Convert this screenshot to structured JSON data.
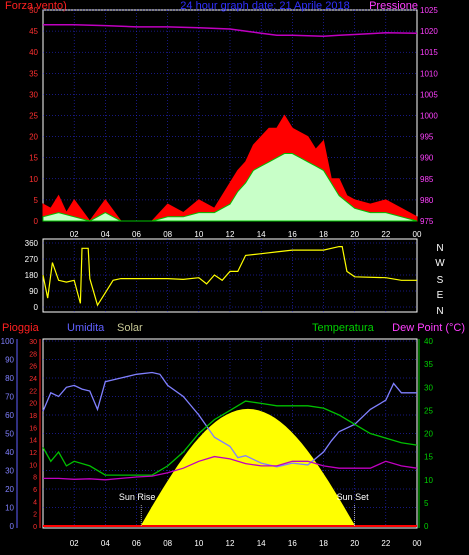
{
  "chart_data": [
    {
      "type": "line",
      "panel": "wind-pressure",
      "title": "24 hour graph date: 21 Aprile 2018",
      "left_axis_label": "Forza vento)",
      "right_axis_label": "Pressione",
      "x_ticks": [
        "02",
        "04",
        "06",
        "08",
        "10",
        "12",
        "14",
        "16",
        "18",
        "20",
        "22",
        "00"
      ],
      "y_left_ticks": [
        "0",
        "5",
        "10",
        "15",
        "20",
        "25",
        "30",
        "35",
        "40",
        "45",
        "50"
      ],
      "y_left_range": [
        0,
        50
      ],
      "y_right_ticks": [
        "975",
        "980",
        "985",
        "990",
        "995",
        "1000",
        "1005",
        "1010",
        "1015",
        "1020",
        "1025"
      ],
      "y_right_range": [
        975,
        1025
      ],
      "colors": {
        "gust": "#ff0000",
        "wind_avg": "#00c000",
        "wind": "#c8ffc8",
        "pressure": "#c000c0",
        "axis": "#3030ff"
      },
      "series": [
        {
          "x": [
            0,
            2,
            4,
            6,
            8,
            10,
            12,
            13,
            14,
            15,
            16,
            17,
            18,
            19,
            20,
            22,
            24
          ],
          "values": [
            1021.5,
            1021.5,
            1021.3,
            1021.0,
            1021.0,
            1020.8,
            1020.5,
            1020.0,
            1019.5,
            1019.0,
            1019.0,
            1018.9,
            1018.8,
            1019.0,
            1019.2,
            1019.6,
            1019.5
          ]
        },
        {
          "x": [
            0,
            0.5,
            1,
            1.5,
            2,
            3,
            4,
            5,
            6,
            7,
            8,
            9,
            10,
            11,
            12,
            12.5,
            13,
            13.5,
            14,
            14.5,
            15,
            15.5,
            16,
            16.5,
            17,
            17.5,
            18,
            18.5,
            19,
            19.5,
            20,
            21,
            22,
            23,
            24
          ],
          "values": [
            4,
            3,
            6,
            2,
            5,
            0,
            5,
            0,
            0,
            0,
            4,
            2,
            5,
            3,
            9,
            12,
            14,
            18,
            20,
            22,
            22,
            25,
            22,
            21,
            20,
            17,
            19,
            10,
            10,
            6,
            5,
            4,
            5,
            3,
            1
          ]
        },
        {
          "x": [
            0,
            1,
            2,
            3,
            4,
            5,
            6,
            7,
            8,
            9,
            10,
            11,
            12,
            12.5,
            13,
            13.5,
            14,
            14.5,
            15,
            15.5,
            16,
            16.5,
            17,
            17.5,
            18,
            18.5,
            19,
            20,
            21,
            22,
            23,
            24
          ],
          "values": [
            1,
            2,
            1,
            0,
            2,
            0,
            0,
            0,
            1,
            1,
            2,
            2,
            4,
            7,
            9,
            12,
            13,
            14,
            15,
            16,
            16,
            15,
            14,
            13,
            12,
            9,
            6,
            3,
            2,
            2,
            1,
            0
          ]
        }
      ]
    },
    {
      "type": "line",
      "panel": "wind-direction",
      "y_left_ticks": [
        "360",
        "270",
        "180",
        "90",
        "0"
      ],
      "y_range": [
        0,
        360
      ],
      "compass_labels": [
        "N",
        "W",
        "S",
        "E",
        "N"
      ],
      "color": "#ffff00",
      "x": [
        0,
        0.3,
        0.6,
        1,
        1.5,
        2,
        2.4,
        2.5,
        2.9,
        3,
        3.5,
        4,
        4.5,
        5,
        6,
        7,
        8,
        9,
        10,
        10.5,
        11,
        11.5,
        12,
        12.5,
        13,
        14,
        15,
        16,
        17,
        18,
        19,
        19.2,
        19.5,
        20,
        22,
        23,
        24
      ],
      "values": [
        180,
        50,
        250,
        150,
        140,
        150,
        20,
        330,
        330,
        160,
        10,
        80,
        150,
        160,
        160,
        160,
        160,
        155,
        165,
        130,
        180,
        150,
        200,
        200,
        290,
        300,
        310,
        320,
        320,
        320,
        340,
        340,
        200,
        170,
        165,
        150,
        150
      ]
    },
    {
      "type": "line",
      "panel": "climate",
      "labels": {
        "rain": "Pioggia",
        "humidity": "Umidita",
        "solar": "Solar",
        "temperature": "Temperatura",
        "dew_point": "Dew Point (°C)"
      },
      "annotations": {
        "sunrise": "Sun Rise",
        "sunset": "Sun Set"
      },
      "sunrise_hour": 6.3,
      "sunset_hour": 20.0,
      "humidity_ticks": [
        "0",
        "10",
        "20",
        "30",
        "40",
        "50",
        "60",
        "70",
        "80",
        "90",
        "100"
      ],
      "humidity_range": [
        0,
        100
      ],
      "rain_ticks": [
        "0",
        "2",
        "4",
        "6",
        "8",
        "10",
        "12",
        "14",
        "16",
        "18",
        "20",
        "22",
        "24",
        "26",
        "28",
        "30"
      ],
      "rain_range": [
        0,
        30
      ],
      "temp_ticks": [
        "0",
        "5",
        "10",
        "15",
        "20",
        "25",
        "30",
        "35",
        "40"
      ],
      "temp_range": [
        0,
        40
      ],
      "colors": {
        "rain": "#ff0000",
        "humidity": "#8080ff",
        "solar": "#ffff00",
        "temperature": "#00c000",
        "dew_point": "#c000c0"
      },
      "humidity": {
        "x": [
          0,
          0.5,
          1,
          1.5,
          2,
          2.5,
          3,
          3.5,
          4,
          5,
          6,
          7,
          7.5,
          8,
          9,
          10,
          11,
          12,
          12.5,
          13,
          14,
          15,
          16,
          17,
          18,
          18.5,
          19,
          20,
          21,
          22,
          22.5,
          23,
          24
        ],
        "values": [
          62,
          72,
          70,
          75,
          76,
          74,
          73,
          63,
          78,
          80,
          82,
          83,
          82,
          76,
          70,
          60,
          48,
          43,
          37,
          38,
          34,
          32,
          34,
          33,
          40,
          46,
          51,
          55,
          63,
          68,
          77,
          72,
          72
        ]
      },
      "temperature": {
        "x": [
          0,
          0.5,
          1,
          1.5,
          2,
          3,
          4,
          5,
          6,
          7,
          8,
          9,
          10,
          11,
          12,
          13,
          14,
          15,
          16,
          17,
          18,
          19,
          20,
          21,
          22,
          23,
          24
        ],
        "values": [
          17,
          14,
          16,
          13,
          14,
          13,
          11,
          11,
          11,
          11,
          13,
          16,
          20,
          23,
          25,
          27,
          26.5,
          26,
          26,
          26,
          25.5,
          24,
          22,
          20,
          19,
          18,
          17.5
        ]
      },
      "dew_point": {
        "x": [
          0,
          1,
          2,
          3,
          4,
          5,
          6,
          7,
          8,
          9,
          10,
          11,
          12,
          13,
          14,
          15,
          16,
          17,
          18,
          19,
          20,
          21,
          22,
          23,
          24
        ],
        "values": [
          10.3,
          10.3,
          10.1,
          10.2,
          10.0,
          10.3,
          10.6,
          10.8,
          11.5,
          12.5,
          14,
          15,
          14.5,
          13.5,
          13,
          13,
          14,
          14,
          13,
          12.5,
          12.5,
          12.5,
          14,
          13,
          12.5
        ]
      },
      "solar_peak_pct": 63,
      "rain_values": [
        0
      ]
    }
  ]
}
